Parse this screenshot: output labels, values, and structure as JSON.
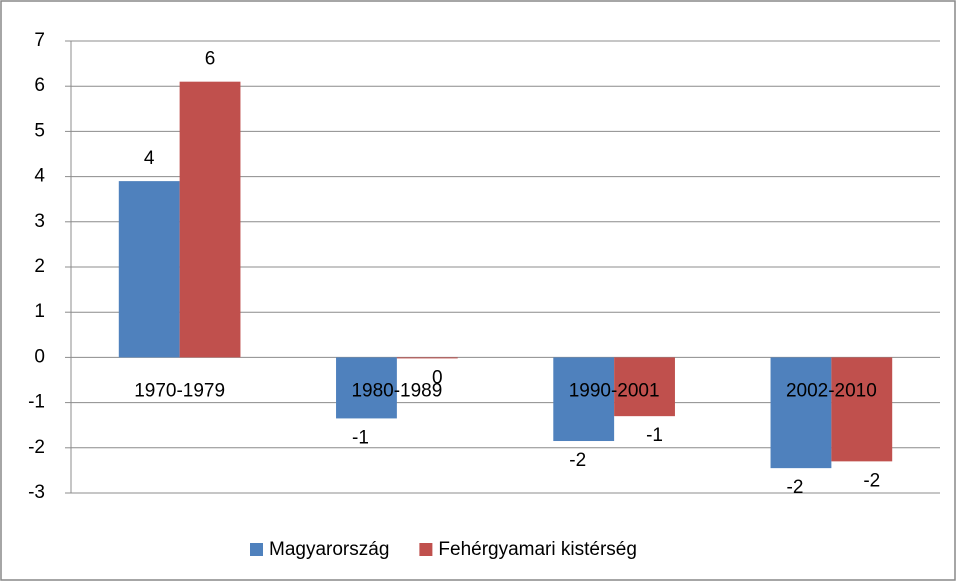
{
  "chart_data": {
    "type": "bar",
    "categories": [
      "1970-1979",
      "1980-1989",
      "1990-2001",
      "2002-2010"
    ],
    "series": [
      {
        "name": "Magyarország",
        "color": "#4f81bd",
        "values": [
          3.9,
          -1.35,
          -1.85,
          -2.45
        ],
        "value_labels": [
          "4",
          "-1",
          "-2",
          "-2"
        ]
      },
      {
        "name": "Fehérgyamari kistérség",
        "color": "#c0504d",
        "values": [
          6.1,
          -0.02,
          -1.3,
          -2.3
        ],
        "value_labels": [
          "6",
          "0",
          "-1",
          "-2"
        ]
      }
    ],
    "ylim": [
      -3,
      7
    ],
    "yticks": [
      -3,
      -2,
      -1,
      0,
      1,
      2,
      3,
      4,
      5,
      6,
      7
    ],
    "grid": true,
    "legend": "bottom"
  }
}
